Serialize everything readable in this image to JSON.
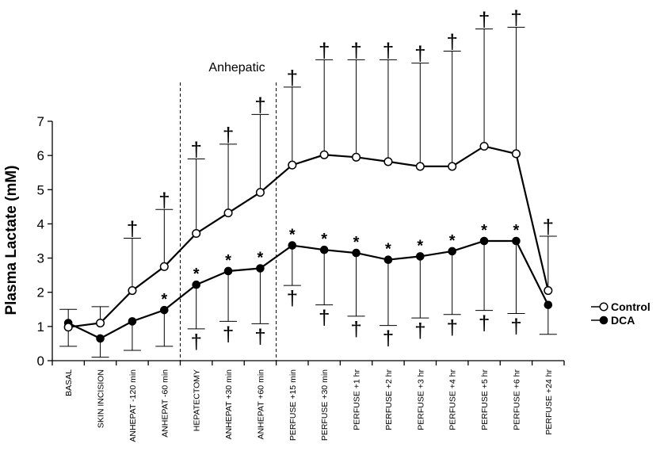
{
  "chart_data": {
    "type": "line",
    "ylabel": "Plasma Lactate (mM)",
    "xlabel": "",
    "ylim": [
      0,
      7
    ],
    "yticks": [
      0,
      1,
      2,
      3,
      4,
      5,
      6,
      7
    ],
    "categories": [
      "BASAL",
      "SKIN INCISION",
      "ANHEPAT -120 min",
      "ANHEPAT -60 min",
      "HEPATECTOMY",
      "ANHEPAT +30 min",
      "ANHEPAT +60 min",
      "PERFUSE +15 min",
      "PERFUSE +30 min",
      "PERFUSE +1 hr",
      "PERFUSE +2 hr",
      "PERFUSE +3 hr",
      "PERFUSE +4 hr",
      "PERFUSE +5 hr",
      "PERFUSE +6 hr",
      "PERFUSE +24 hr"
    ],
    "series": [
      {
        "name": "Control",
        "marker": "open-circle",
        "values": [
          0.98,
          1.1,
          2.05,
          2.75,
          3.72,
          4.32,
          4.92,
          5.72,
          6.02,
          5.95,
          5.82,
          5.68,
          5.68,
          6.27,
          6.05,
          2.05
        ],
        "error_upper": [
          1.5,
          1.58,
          3.58,
          4.42,
          5.9,
          6.33,
          7.2,
          8.0,
          8.8,
          8.8,
          8.8,
          8.7,
          9.05,
          9.7,
          9.75,
          3.64
        ]
      },
      {
        "name": "DCA",
        "marker": "filled-circle",
        "values": [
          1.1,
          0.65,
          1.15,
          1.48,
          2.22,
          2.62,
          2.7,
          3.37,
          3.24,
          3.15,
          2.95,
          3.05,
          3.2,
          3.5,
          3.5,
          1.63
        ],
        "error_lower": [
          0.42,
          0.1,
          0.3,
          0.42,
          0.93,
          1.15,
          1.08,
          2.2,
          1.63,
          1.3,
          1.03,
          1.25,
          1.35,
          1.47,
          1.38,
          0.77
        ]
      }
    ],
    "markers": {
      "dagger": "†",
      "star": "*",
      "control_dagger_indices": [
        2,
        3,
        4,
        5,
        6,
        7,
        8,
        9,
        10,
        11,
        12,
        13,
        14,
        15
      ],
      "dca_star_indices": [
        3,
        4,
        5,
        6,
        7,
        8,
        9,
        10,
        11,
        12,
        13,
        14
      ],
      "dca_dagger_indices": [
        4,
        5,
        6,
        7,
        8,
        9,
        10,
        11,
        12,
        13,
        14
      ]
    },
    "annotation": "Anhepatic",
    "phase_dividers_between": [
      [
        3,
        4
      ],
      [
        6,
        7
      ]
    ],
    "legend": {
      "position": "right",
      "entries": [
        "Control",
        "DCA"
      ]
    },
    "grid": false
  }
}
